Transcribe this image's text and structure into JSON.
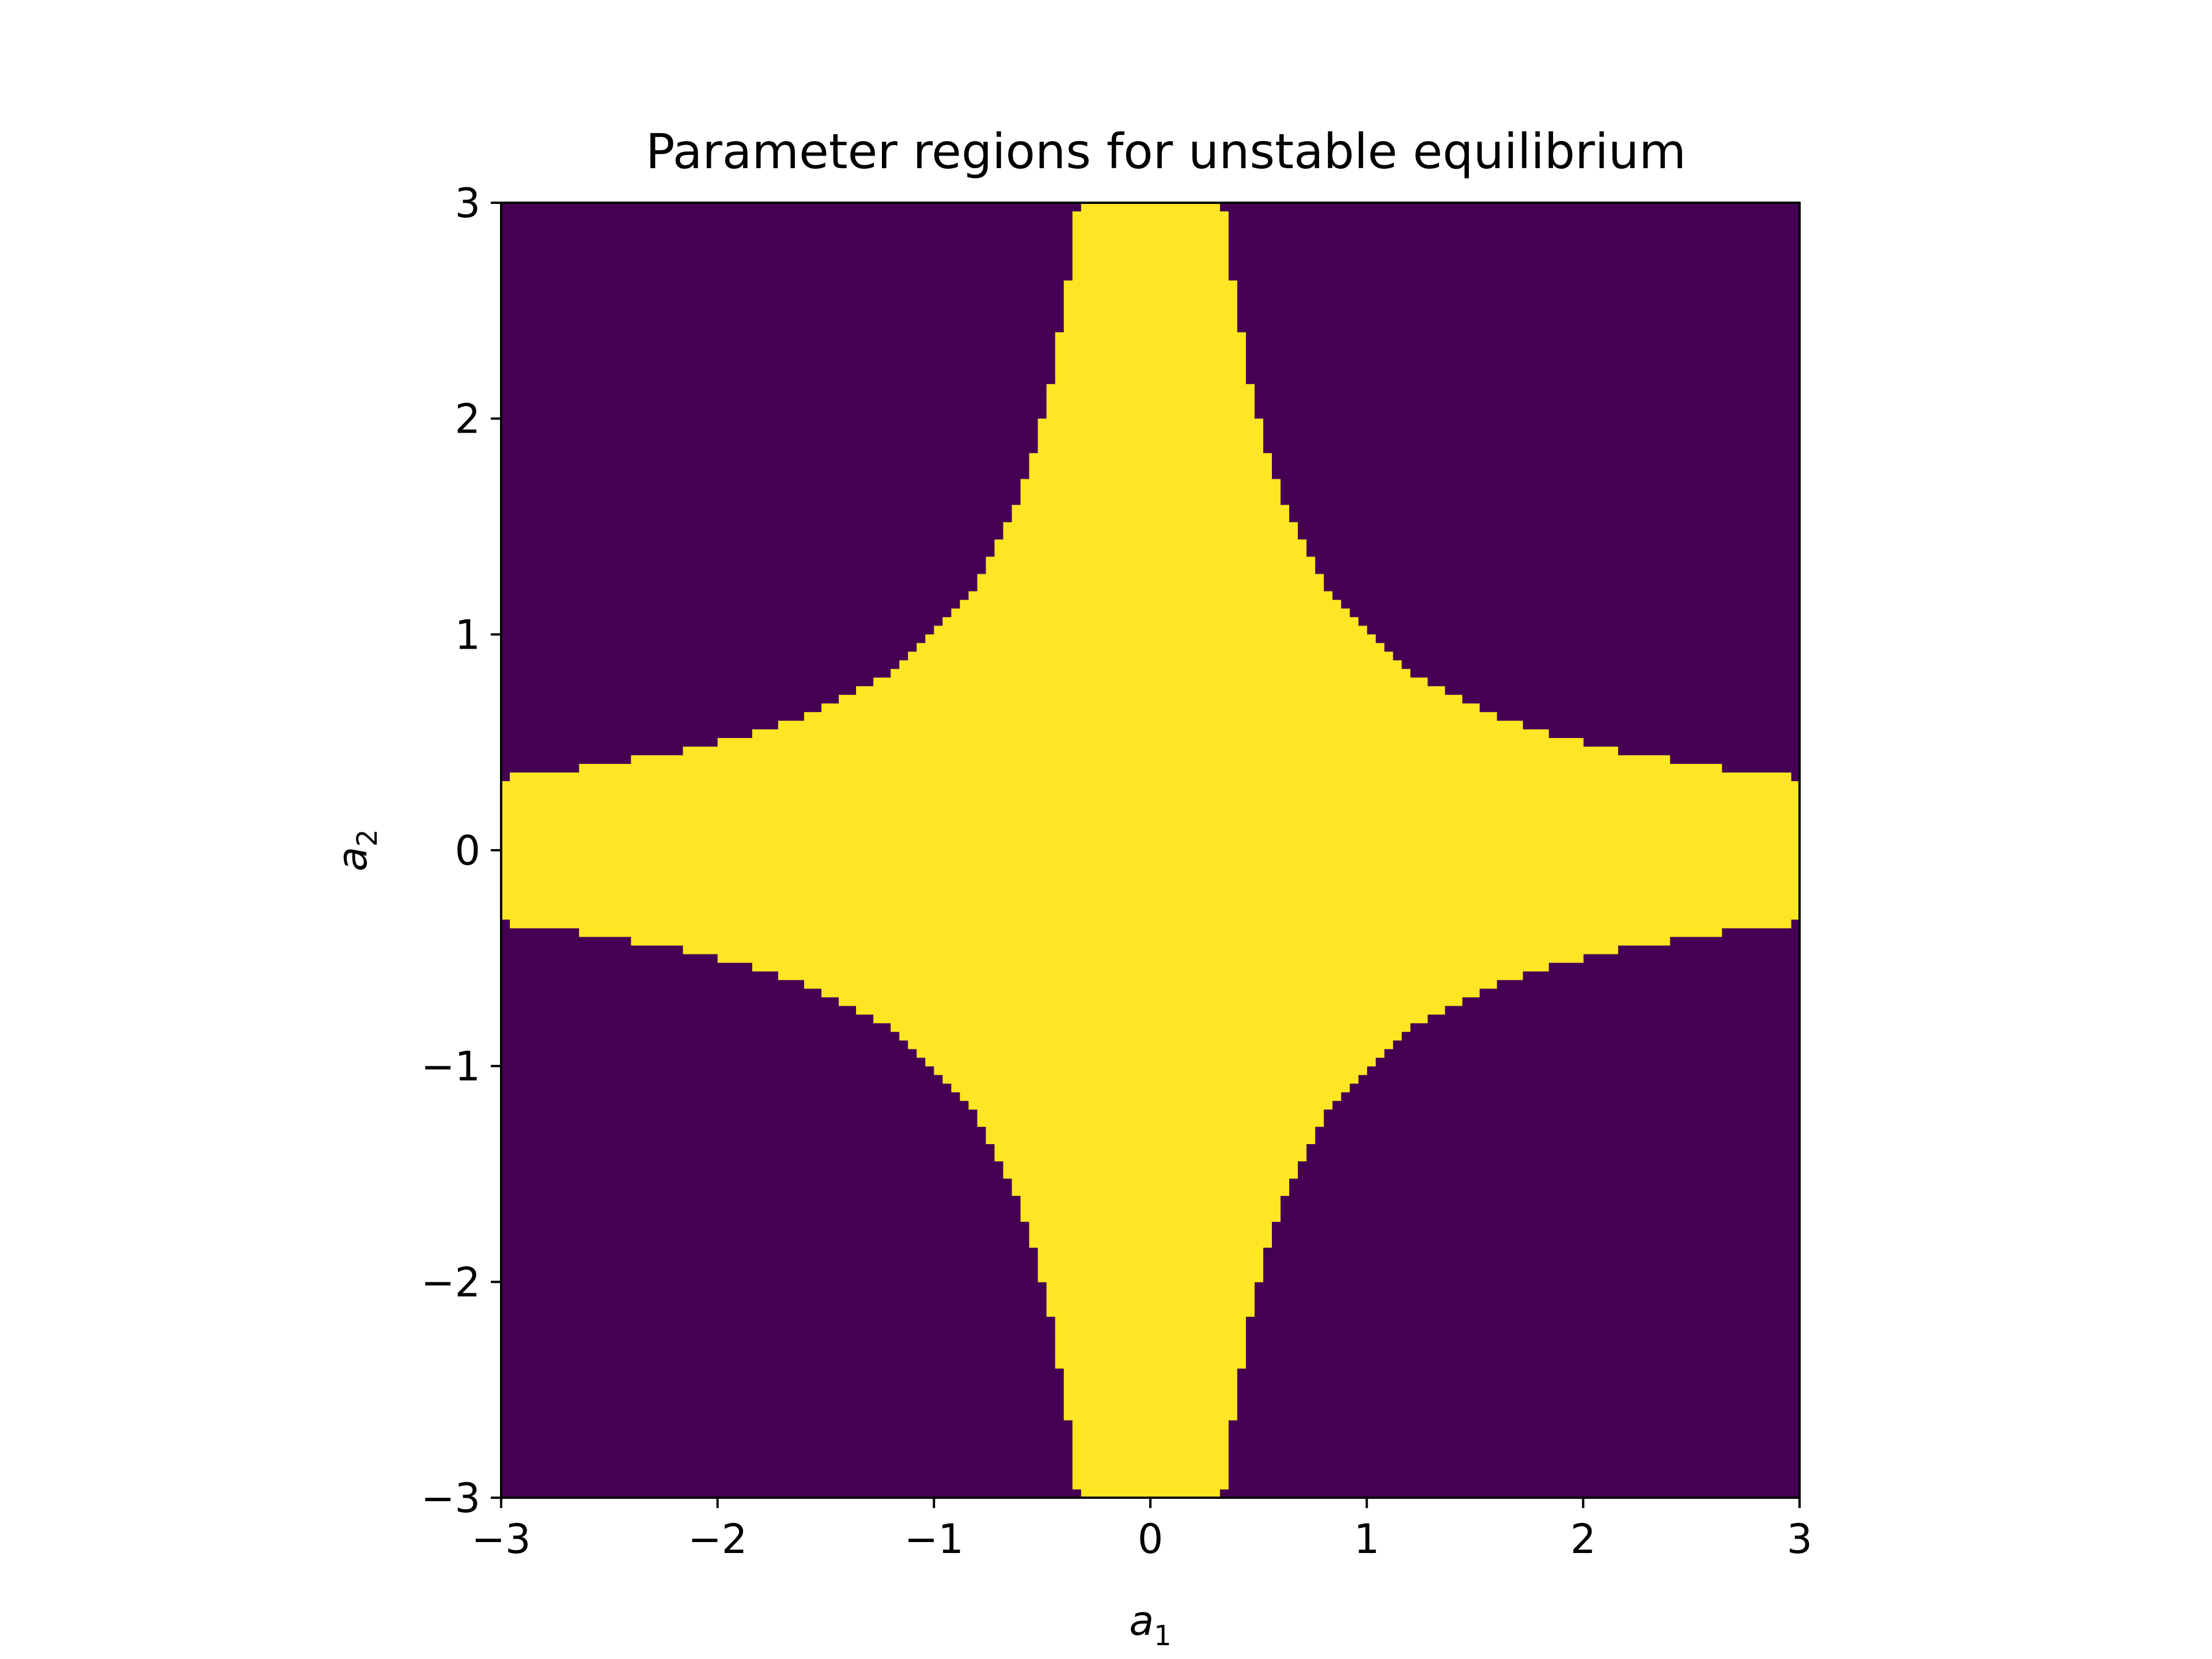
{
  "chart_data": {
    "type": "heatmap",
    "title": "Parameter regions for unstable equilibrium",
    "xlabel": {
      "base": "a",
      "sub": "1"
    },
    "ylabel": {
      "base": "a",
      "sub": "2"
    },
    "xlim": [
      -3,
      3
    ],
    "ylim": [
      -3,
      3
    ],
    "x_ticks": [
      -3,
      -2,
      -1,
      0,
      1,
      2,
      3
    ],
    "y_ticks": [
      -3,
      -2,
      -1,
      0,
      1,
      2,
      3
    ],
    "x_tick_labels": [
      "−3",
      "−2",
      "−1",
      "0",
      "1",
      "2",
      "3"
    ],
    "y_tick_labels": [
      "−3",
      "−2",
      "−1",
      "0",
      "1",
      "2",
      "3"
    ],
    "grid": false,
    "legend": "none",
    "resolution": 150,
    "region": {
      "description_rule": "|a1| * |a2| < 1",
      "boundary_samples": [
        {
          "a1": 0.33,
          "a2": 3.0
        },
        {
          "a1": 0.5,
          "a2": 2.0
        },
        {
          "a1": 1.0,
          "a2": 1.0
        },
        {
          "a1": 2.0,
          "a2": 0.5
        },
        {
          "a1": 3.0,
          "a2": 0.33
        }
      ]
    },
    "colors": {
      "inside": "#fde725",
      "outside": "#440154"
    }
  }
}
